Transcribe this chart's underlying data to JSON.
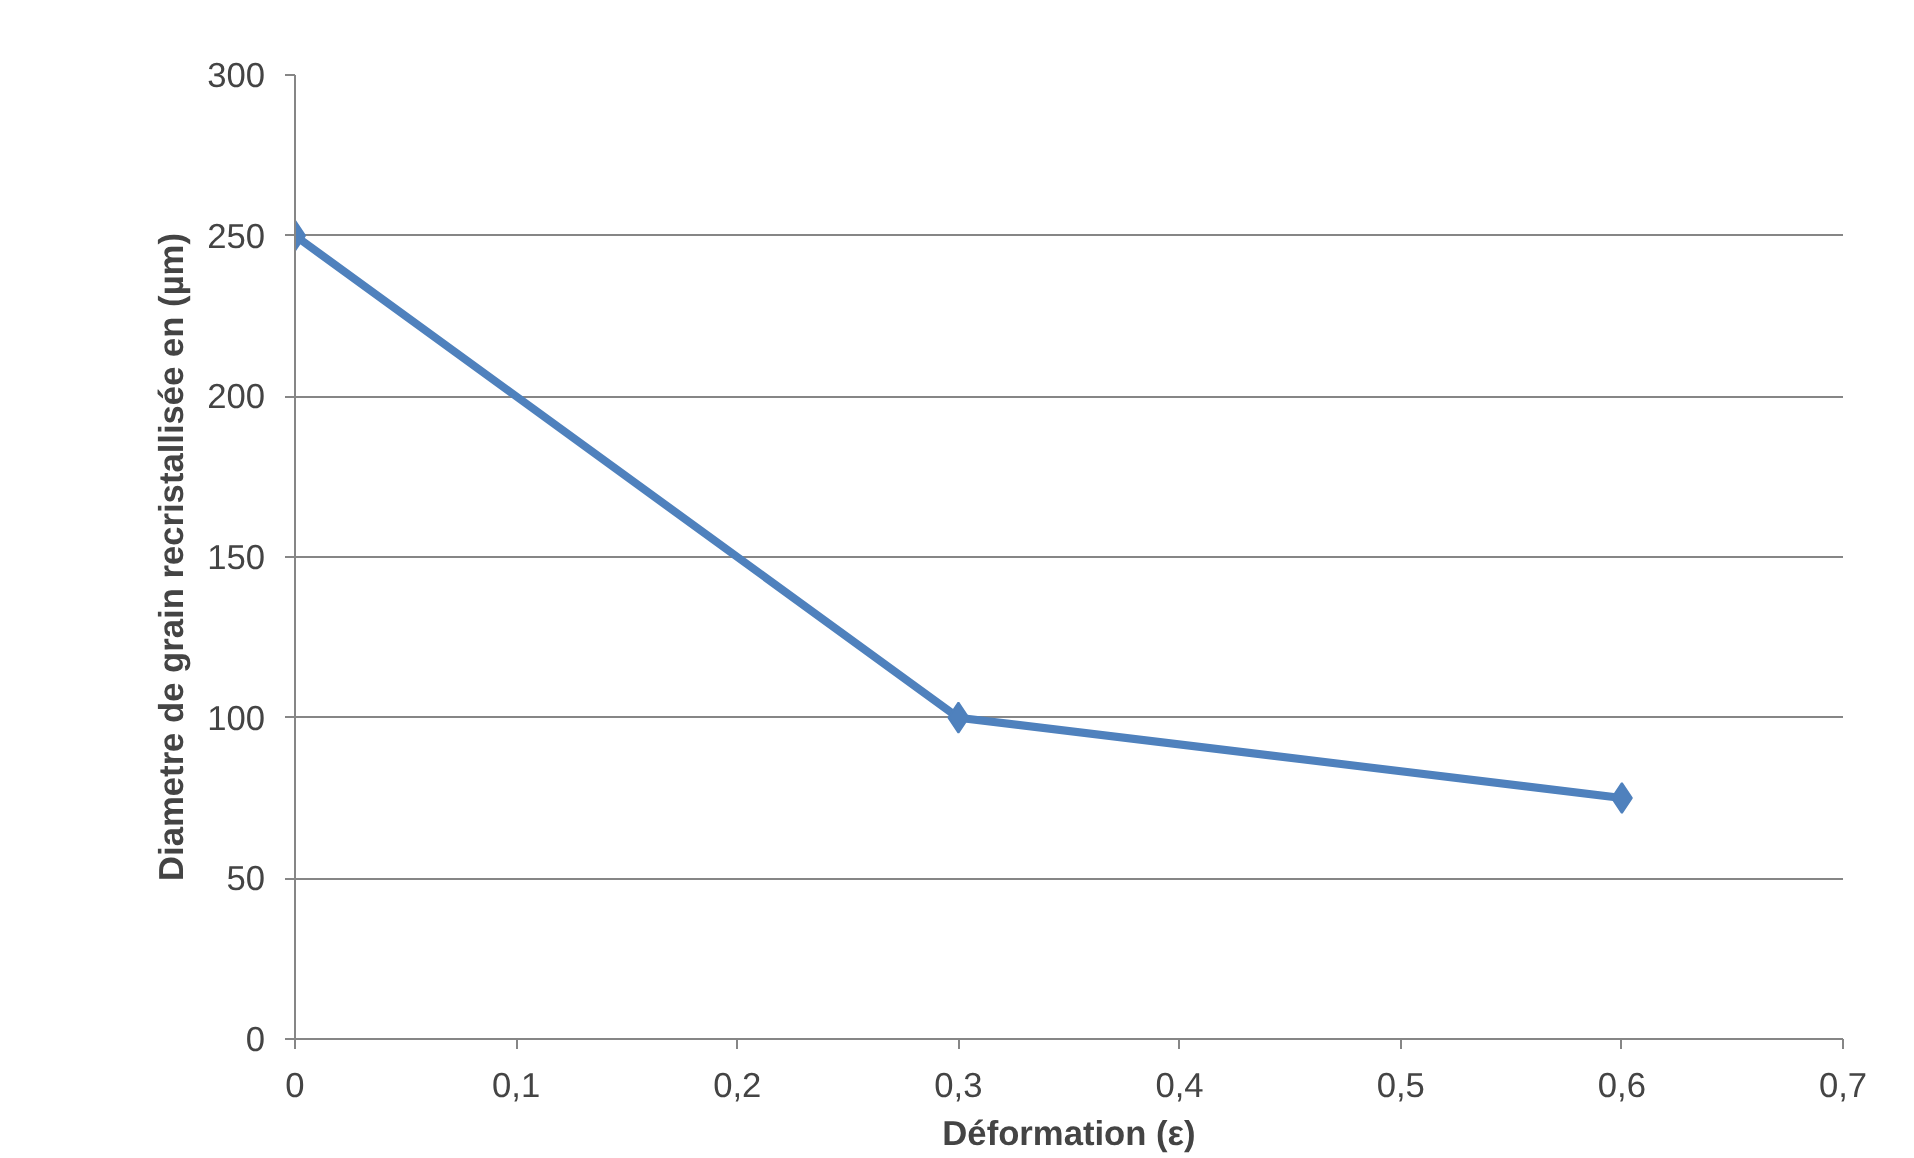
{
  "chart_data": {
    "type": "line",
    "xlabel": "Déformation (ε)",
    "ylabel": "Diametre de grain recristallisée en (µm)",
    "x": [
      0,
      0.3,
      0.6
    ],
    "series": [
      {
        "color": "#4f81bd",
        "values": [
          250,
          100,
          75
        ]
      }
    ],
    "xlim": [
      0,
      0.7
    ],
    "ylim": [
      0,
      300
    ],
    "xticks": [
      0,
      {
        "value": 0.1,
        "label": "0,1"
      },
      {
        "value": 0.2,
        "label": "0,2"
      },
      {
        "value": 0.3,
        "label": "0,3"
      },
      {
        "value": 0.4,
        "label": "0,4"
      },
      {
        "value": 0.5,
        "label": "0,5"
      },
      {
        "value": 0.6,
        "label": "0,6"
      },
      {
        "value": 0.7,
        "label": "0,7"
      }
    ],
    "yticks": [
      0,
      50,
      100,
      150,
      200,
      250,
      300
    ],
    "grid": "y",
    "marker": "diamond",
    "line_style": "solid"
  }
}
